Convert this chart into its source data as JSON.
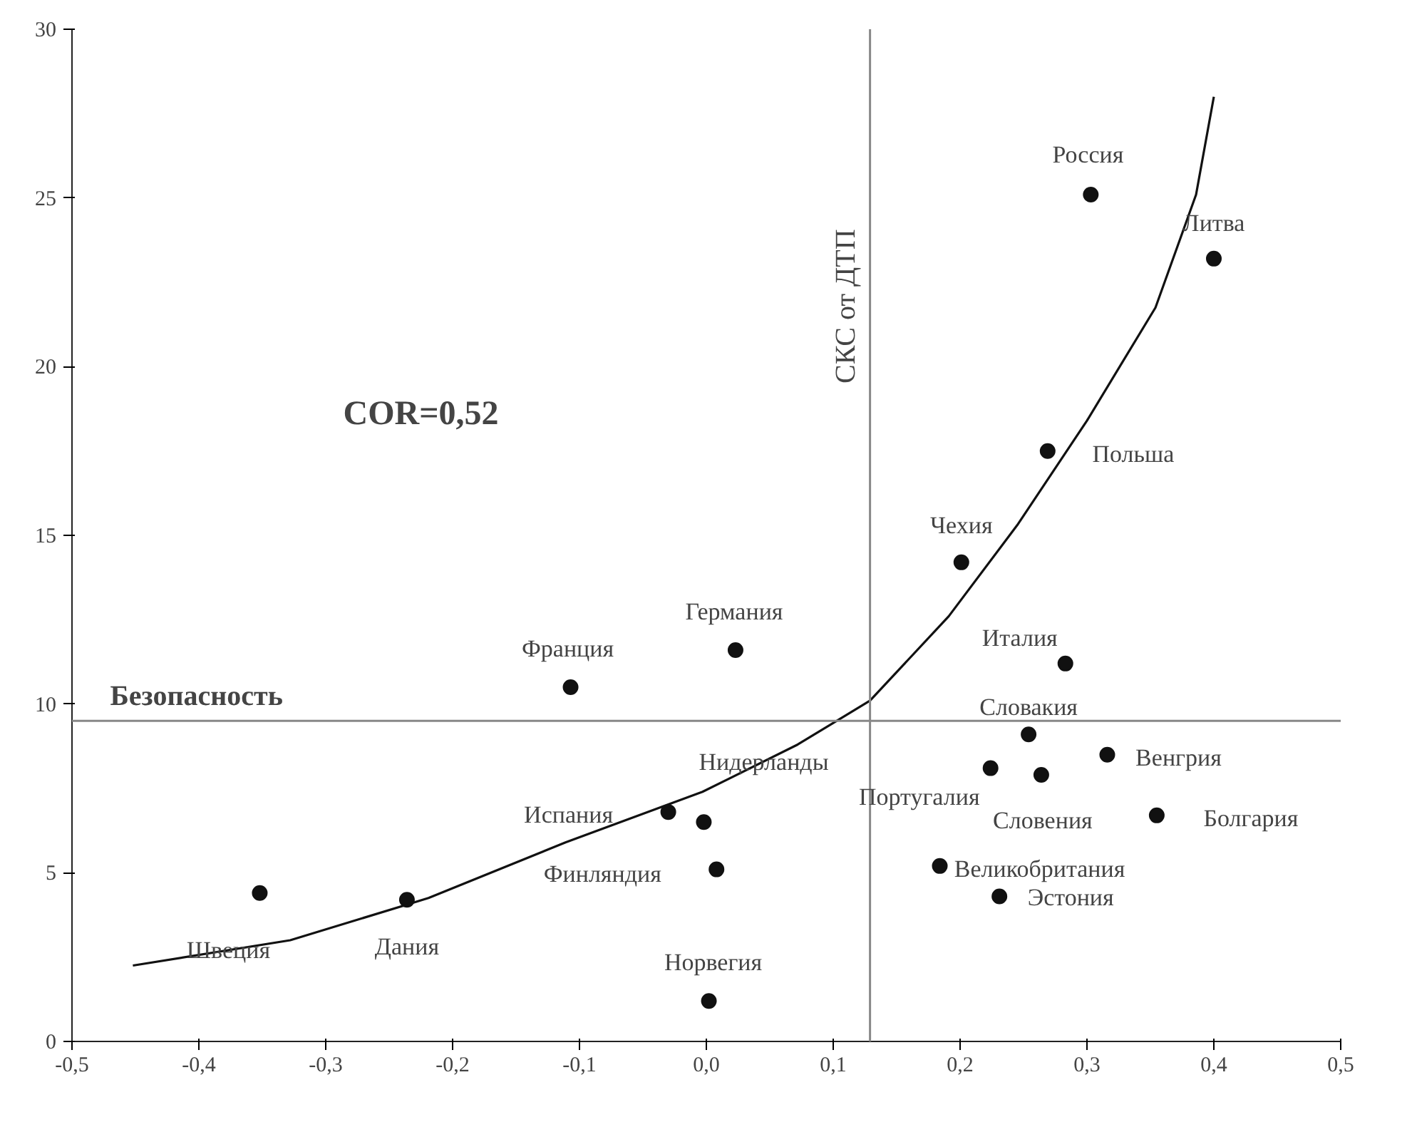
{
  "chart_data": {
    "type": "scatter",
    "grid": false,
    "xlim": [
      -0.5,
      0.5
    ],
    "ylim": [
      0,
      30
    ],
    "xticks": [
      {
        "value": -0.5,
        "label": "-0,5"
      },
      {
        "value": -0.4,
        "label": "-0,4"
      },
      {
        "value": -0.3,
        "label": "-0,3"
      },
      {
        "value": -0.2,
        "label": "-0,2"
      },
      {
        "value": -0.1,
        "label": "-0,1"
      },
      {
        "value": 0.0,
        "label": "0,0"
      },
      {
        "value": 0.1,
        "label": "0,1"
      },
      {
        "value": 0.2,
        "label": "0,2"
      },
      {
        "value": 0.3,
        "label": "0,3"
      },
      {
        "value": 0.4,
        "label": "0,4"
      },
      {
        "value": 0.5,
        "label": "0,5"
      }
    ],
    "yticks": [
      0,
      5,
      10,
      15,
      20,
      25,
      30
    ],
    "series": [
      {
        "color": "#111111",
        "marker": "circle",
        "x": [
          0.303,
          0.4,
          0.269,
          0.201,
          0.283,
          0.023,
          -0.107,
          0.254,
          0.316,
          0.224,
          0.264,
          0.355,
          -0.03,
          -0.002,
          0.008,
          0.184,
          0.231,
          -0.352,
          -0.236,
          0.002
        ],
        "values": [
          25.1,
          23.2,
          17.5,
          14.2,
          11.2,
          11.6,
          10.5,
          9.1,
          8.5,
          8.1,
          7.9,
          6.7,
          6.8,
          6.5,
          5.1,
          5.2,
          4.3,
          4.4,
          4.2,
          1.2
        ]
      },
      {
        "type": "line",
        "color": "#111111",
        "x": [
          -0.452,
          -0.328,
          -0.219,
          -0.111,
          -0.003,
          0.072,
          0.129,
          0.191,
          0.245,
          0.3,
          0.354,
          0.386,
          0.4
        ],
        "values": [
          2.25,
          3.0,
          4.25,
          5.9,
          7.4,
          8.8,
          10.1,
          12.6,
          15.3,
          18.4,
          21.75,
          25.1,
          28.0
        ]
      }
    ],
    "ref_lines": [
      {
        "axis": "y",
        "value": 9.5,
        "label": "Безопасность",
        "color": "#888888"
      },
      {
        "axis": "x",
        "value": 0.129,
        "label": "СКС от ДТП",
        "color": "#888888"
      }
    ],
    "annotations": [
      {
        "text": "Россия",
        "x": 0.303,
        "y": 25.1
      },
      {
        "text": "Литва",
        "x": 0.4,
        "y": 23.2
      },
      {
        "text": "Польша",
        "x": 0.269,
        "y": 17.5
      },
      {
        "text": "Чехия",
        "x": 0.201,
        "y": 14.2
      },
      {
        "text": "Италия",
        "x": 0.283,
        "y": 11.2
      },
      {
        "text": "Германия",
        "x": 0.023,
        "y": 11.6
      },
      {
        "text": "Франция",
        "x": -0.107,
        "y": 10.5
      },
      {
        "text": "Словакия",
        "x": 0.254,
        "y": 9.1
      },
      {
        "text": "Венгрия",
        "x": 0.316,
        "y": 8.5
      },
      {
        "text": "Португалия",
        "x": 0.224,
        "y": 8.1
      },
      {
        "text": "Словения",
        "x": 0.264,
        "y": 7.9
      },
      {
        "text": "Болгария",
        "x": 0.355,
        "y": 6.7
      },
      {
        "text": "Испания",
        "x": -0.03,
        "y": 6.8
      },
      {
        "text": "Нидерланды",
        "x": -0.002,
        "y": 6.5
      },
      {
        "text": "Финляндия",
        "x": 0.008,
        "y": 5.1
      },
      {
        "text": "Великобритания",
        "x": 0.184,
        "y": 5.2
      },
      {
        "text": "Эстония",
        "x": 0.231,
        "y": 4.3
      },
      {
        "text": "Швеция",
        "x": -0.352,
        "y": 4.4
      },
      {
        "text": "Дания",
        "x": -0.236,
        "y": 4.2
      },
      {
        "text": "Норвегия",
        "x": 0.002,
        "y": 1.2
      },
      "COR=0,52"
    ]
  }
}
